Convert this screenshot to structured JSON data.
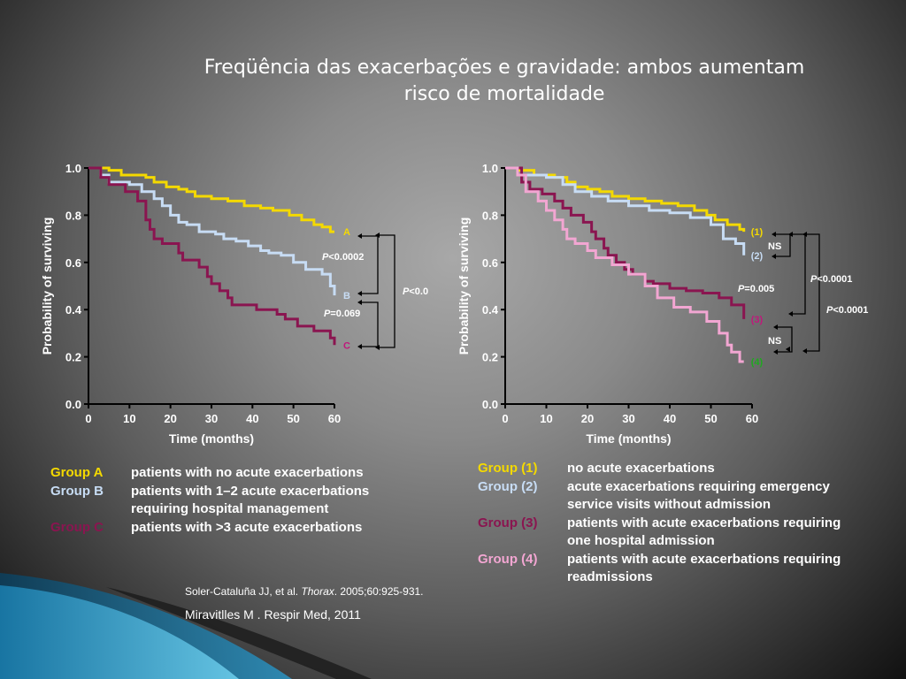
{
  "slide": {
    "title_line1": "Freqüência das exacerbações e gravidade: ambos aumentam",
    "title_line2": "risco de mortalidade",
    "citation1": {
      "pre": "Soler-Cataluña JJ, et al. ",
      "journal": "Thorax",
      "post": ". 2005;60:925-931."
    },
    "citation2": "Miravitlles M . Respir Med, 2011"
  },
  "colors": {
    "groupA": "#f4d900",
    "groupB": "#c7dcf4",
    "groupC": "#8a1550",
    "group1": "#f4d900",
    "group2": "#c7dcf4",
    "group3": "#8a1550",
    "group4": "#f2a6d2",
    "group4_label": "#1fa81f",
    "axis": "#000000"
  },
  "legend_left": [
    {
      "key": "Group A",
      "color": "#f4d900",
      "lines": [
        "patients with no acute exacerbations"
      ]
    },
    {
      "key": "Group B",
      "color": "#c7dcf4",
      "lines": [
        "patients with 1–2 acute exacerbations",
        "requiring hospital management"
      ]
    },
    {
      "key": "Group C",
      "color": "#8a1550",
      "lines": [
        "patients with >3 acute exacerbations"
      ]
    }
  ],
  "legend_right": [
    {
      "key": "Group (1)",
      "color": "#f4d900",
      "lines": [
        "no acute exacerbations"
      ]
    },
    {
      "key": "Group (2)",
      "color": "#c7dcf4",
      "lines": [
        "acute exacerbations requiring emergency",
        "service visits without admission"
      ]
    },
    {
      "key": "Group (3)",
      "color": "#8a1550",
      "lines": [
        "patients with acute exacerbations requiring",
        "one hospital admission"
      ]
    },
    {
      "key": "Group (4)",
      "color": "#f2a6d2",
      "lines": [
        "patients with acute exacerbations requiring",
        "readmissions"
      ]
    }
  ],
  "chart_data": [
    {
      "type": "line",
      "subtype": "kaplan-meier step",
      "xlabel": "Time (months)",
      "ylabel": "Probability of surviving",
      "xlim": [
        0,
        60
      ],
      "ylim": [
        0.0,
        1.0
      ],
      "xticks": [
        "0",
        "10",
        "20",
        "30",
        "40",
        "50",
        "60"
      ],
      "yticks": [
        "0.0",
        "0.2",
        "0.4",
        "0.6",
        "0.8",
        "1.0"
      ],
      "series": [
        {
          "name": "A",
          "color": "#f4d900",
          "label_color": "#f4d900",
          "points": [
            [
              0,
              1.0
            ],
            [
              5,
              0.99
            ],
            [
              8,
              0.97
            ],
            [
              14,
              0.96
            ],
            [
              16,
              0.94
            ],
            [
              19,
              0.92
            ],
            [
              22,
              0.91
            ],
            [
              24,
              0.9
            ],
            [
              26,
              0.88
            ],
            [
              30,
              0.87
            ],
            [
              34,
              0.86
            ],
            [
              38,
              0.84
            ],
            [
              42,
              0.83
            ],
            [
              45,
              0.82
            ],
            [
              49,
              0.8
            ],
            [
              52,
              0.78
            ],
            [
              55,
              0.76
            ],
            [
              57,
              0.75
            ],
            [
              59,
              0.73
            ],
            [
              60,
              0.73
            ]
          ]
        },
        {
          "name": "B",
          "color": "#c7dcf4",
          "label_color": "#c7dcf4",
          "points": [
            [
              0,
              1.0
            ],
            [
              3,
              0.97
            ],
            [
              5,
              0.94
            ],
            [
              10,
              0.93
            ],
            [
              13,
              0.9
            ],
            [
              16,
              0.87
            ],
            [
              18,
              0.84
            ],
            [
              20,
              0.8
            ],
            [
              22,
              0.77
            ],
            [
              24,
              0.76
            ],
            [
              27,
              0.73
            ],
            [
              31,
              0.72
            ],
            [
              33,
              0.7
            ],
            [
              36,
              0.69
            ],
            [
              39,
              0.67
            ],
            [
              42,
              0.65
            ],
            [
              44,
              0.64
            ],
            [
              47,
              0.63
            ],
            [
              50,
              0.6
            ],
            [
              53,
              0.57
            ],
            [
              57,
              0.55
            ],
            [
              59,
              0.5
            ],
            [
              60,
              0.46
            ]
          ]
        },
        {
          "name": "C",
          "color": "#8a1550",
          "label_color": "#c0187c",
          "points": [
            [
              0,
              1.0
            ],
            [
              3,
              0.96
            ],
            [
              5,
              0.93
            ],
            [
              9,
              0.9
            ],
            [
              12,
              0.86
            ],
            [
              14,
              0.78
            ],
            [
              15,
              0.74
            ],
            [
              16,
              0.7
            ],
            [
              18,
              0.68
            ],
            [
              22,
              0.64
            ],
            [
              23,
              0.61
            ],
            [
              27,
              0.58
            ],
            [
              29,
              0.54
            ],
            [
              30,
              0.51
            ],
            [
              32,
              0.48
            ],
            [
              34,
              0.45
            ],
            [
              35,
              0.42
            ],
            [
              41,
              0.4
            ],
            [
              46,
              0.38
            ],
            [
              48,
              0.36
            ],
            [
              51,
              0.33
            ],
            [
              55,
              0.31
            ],
            [
              59,
              0.28
            ],
            [
              60,
              0.25
            ]
          ]
        }
      ],
      "annotations": [
        "P<0.0002",
        "P<0.0",
        "P=0.069"
      ]
    },
    {
      "type": "line",
      "subtype": "kaplan-meier step",
      "xlabel": "Time (months)",
      "ylabel": "Probability of surviving",
      "xlim": [
        0,
        60
      ],
      "ylim": [
        0.0,
        1.0
      ],
      "xticks": [
        "0",
        "10",
        "20",
        "30",
        "40",
        "50",
        "60"
      ],
      "yticks": [
        "0.0",
        "0.2",
        "0.4",
        "0.6",
        "0.8",
        "1.0"
      ],
      "series": [
        {
          "name": "(1)",
          "color": "#f4d900",
          "label_color": "#f4d900",
          "points": [
            [
              0,
              1.0
            ],
            [
              3,
              0.99
            ],
            [
              7,
              0.97
            ],
            [
              12,
              0.96
            ],
            [
              15,
              0.94
            ],
            [
              17,
              0.92
            ],
            [
              20,
              0.91
            ],
            [
              23,
              0.9
            ],
            [
              26,
              0.88
            ],
            [
              30,
              0.87
            ],
            [
              34,
              0.86
            ],
            [
              38,
              0.85
            ],
            [
              42,
              0.84
            ],
            [
              46,
              0.82
            ],
            [
              49,
              0.8
            ],
            [
              51,
              0.78
            ],
            [
              54,
              0.76
            ],
            [
              57,
              0.74
            ],
            [
              58,
              0.73
            ]
          ]
        },
        {
          "name": "(2)",
          "color": "#c7dcf4",
          "label_color": "#c7dcf4",
          "points": [
            [
              0,
              1.0
            ],
            [
              4,
              0.97
            ],
            [
              10,
              0.96
            ],
            [
              14,
              0.93
            ],
            [
              17,
              0.9
            ],
            [
              21,
              0.88
            ],
            [
              25,
              0.86
            ],
            [
              30,
              0.84
            ],
            [
              35,
              0.82
            ],
            [
              40,
              0.81
            ],
            [
              45,
              0.79
            ],
            [
              50,
              0.76
            ],
            [
              53,
              0.7
            ],
            [
              56,
              0.68
            ],
            [
              58,
              0.63
            ]
          ]
        },
        {
          "name": "(3)",
          "color": "#8a1550",
          "label_color": "#c0187c",
          "points": [
            [
              0,
              1.0
            ],
            [
              4,
              0.94
            ],
            [
              6,
              0.91
            ],
            [
              9,
              0.89
            ],
            [
              12,
              0.86
            ],
            [
              14,
              0.83
            ],
            [
              16,
              0.8
            ],
            [
              19,
              0.77
            ],
            [
              21,
              0.73
            ],
            [
              22,
              0.7
            ],
            [
              24,
              0.66
            ],
            [
              25,
              0.63
            ],
            [
              27,
              0.6
            ],
            [
              29,
              0.57
            ],
            [
              31,
              0.55
            ],
            [
              34,
              0.52
            ],
            [
              36,
              0.51
            ],
            [
              40,
              0.49
            ],
            [
              44,
              0.48
            ],
            [
              48,
              0.47
            ],
            [
              52,
              0.45
            ],
            [
              55,
              0.42
            ],
            [
              58,
              0.42
            ],
            [
              58,
              0.36
            ]
          ]
        },
        {
          "name": "(4)",
          "color": "#f2a6d2",
          "label_color": "#1fa81f",
          "points": [
            [
              0,
              1.0
            ],
            [
              3,
              0.97
            ],
            [
              5,
              0.9
            ],
            [
              8,
              0.86
            ],
            [
              10,
              0.82
            ],
            [
              12,
              0.78
            ],
            [
              14,
              0.74
            ],
            [
              15,
              0.7
            ],
            [
              17,
              0.68
            ],
            [
              20,
              0.65
            ],
            [
              22,
              0.62
            ],
            [
              26,
              0.59
            ],
            [
              30,
              0.55
            ],
            [
              34,
              0.5
            ],
            [
              37,
              0.45
            ],
            [
              41,
              0.41
            ],
            [
              45,
              0.39
            ],
            [
              49,
              0.35
            ],
            [
              52,
              0.3
            ],
            [
              54,
              0.25
            ],
            [
              55,
              0.22
            ],
            [
              57,
              0.18
            ],
            [
              58,
              0.18
            ]
          ]
        }
      ],
      "annotations": [
        "NS",
        "P=0.005",
        "NS",
        "P<0.0001",
        "P<0.0001"
      ]
    }
  ]
}
